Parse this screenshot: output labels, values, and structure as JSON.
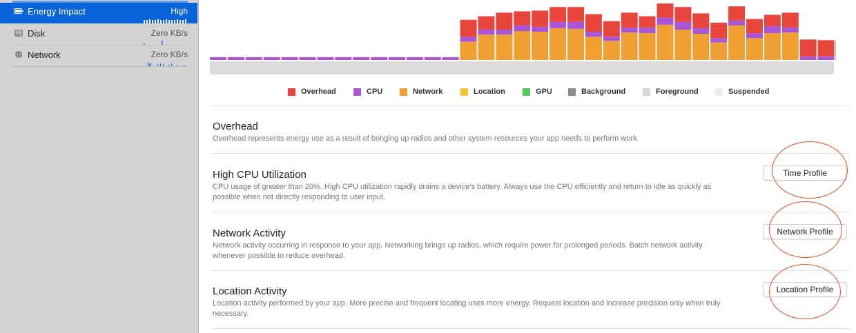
{
  "sidebar": {
    "items": [
      {
        "label": "Energy Impact",
        "value": "High",
        "selected": true,
        "icon": "battery-icon"
      },
      {
        "label": "Disk",
        "value": "Zero KB/s",
        "selected": false,
        "icon": "disk-icon"
      },
      {
        "label": "Network",
        "value": "Zero KB/s",
        "selected": false,
        "icon": "globe-icon"
      }
    ]
  },
  "legend": [
    {
      "label": "Overhead",
      "color": "#e8453c"
    },
    {
      "label": "CPU",
      "color": "#a855d6"
    },
    {
      "label": "Network",
      "color": "#f0a032"
    },
    {
      "label": "Location",
      "color": "#f3c832"
    },
    {
      "label": "GPU",
      "color": "#58c75a"
    },
    {
      "label": "Background",
      "color": "#8c8c8c"
    },
    {
      "label": "Foreground",
      "color": "#d6d6d6"
    },
    {
      "label": "Suspended",
      "color": "#ececec"
    }
  ],
  "chart_data": {
    "type": "bar",
    "stacked": true,
    "series_order": [
      "Network",
      "CPU",
      "Overhead"
    ],
    "series": [
      {
        "name": "Network",
        "values": [
          0,
          0,
          0,
          0,
          0,
          0,
          0,
          0,
          0,
          0,
          0,
          0,
          0,
          0,
          26,
          36,
          36,
          41,
          40,
          45,
          44,
          33,
          27,
          39,
          38,
          50,
          43,
          37,
          25,
          49,
          31,
          38,
          39,
          0,
          0,
          0
        ]
      },
      {
        "name": "CPU",
        "values": [
          4,
          4,
          4,
          4,
          4,
          4,
          4,
          4,
          4,
          4,
          4,
          4,
          4,
          4,
          7,
          7,
          7,
          8,
          7,
          9,
          10,
          7,
          6,
          7,
          8,
          10,
          11,
          8,
          6,
          7,
          7,
          10,
          7,
          5,
          5,
          5
        ]
      },
      {
        "name": "Overhead",
        "values": [
          0,
          0,
          0,
          0,
          0,
          0,
          0,
          0,
          0,
          0,
          0,
          0,
          0,
          0,
          24,
          19,
          24,
          20,
          23,
          21,
          21,
          25,
          22,
          21,
          16,
          20,
          21,
          21,
          22,
          20,
          20,
          16,
          21,
          24,
          23,
          23
        ]
      }
    ],
    "ylim": [
      0,
      85
    ],
    "track": true,
    "grid": false
  },
  "sections": [
    {
      "title": "Overhead",
      "desc": "Overhead represents energy use as a result of bringing up radios and other system resources your app needs to perform work."
    },
    {
      "title": "High CPU Utilization",
      "desc": "CPU usage of greater than 20%. High CPU utilization rapidly drains a device’s battery.  Always use the CPU efficiently and return to idle as quickly as possible when not directly responding to user input.",
      "button": "Time Profile"
    },
    {
      "title": "Network Activity",
      "desc": "Network activity occurring in response to your app. Networking brings up radios, which require power for prolonged periods. Batch network activity whenever possible to reduce overhead.",
      "button": "Network Profile"
    },
    {
      "title": "Location Activity",
      "desc": "Location activity performed by your app. More precise and frequent locating uses more energy. Request location and increase precision only when truly necessary.",
      "button": "Location Profile"
    }
  ],
  "annotation_color": "#d8532a",
  "accent_color": "#0a63d9"
}
